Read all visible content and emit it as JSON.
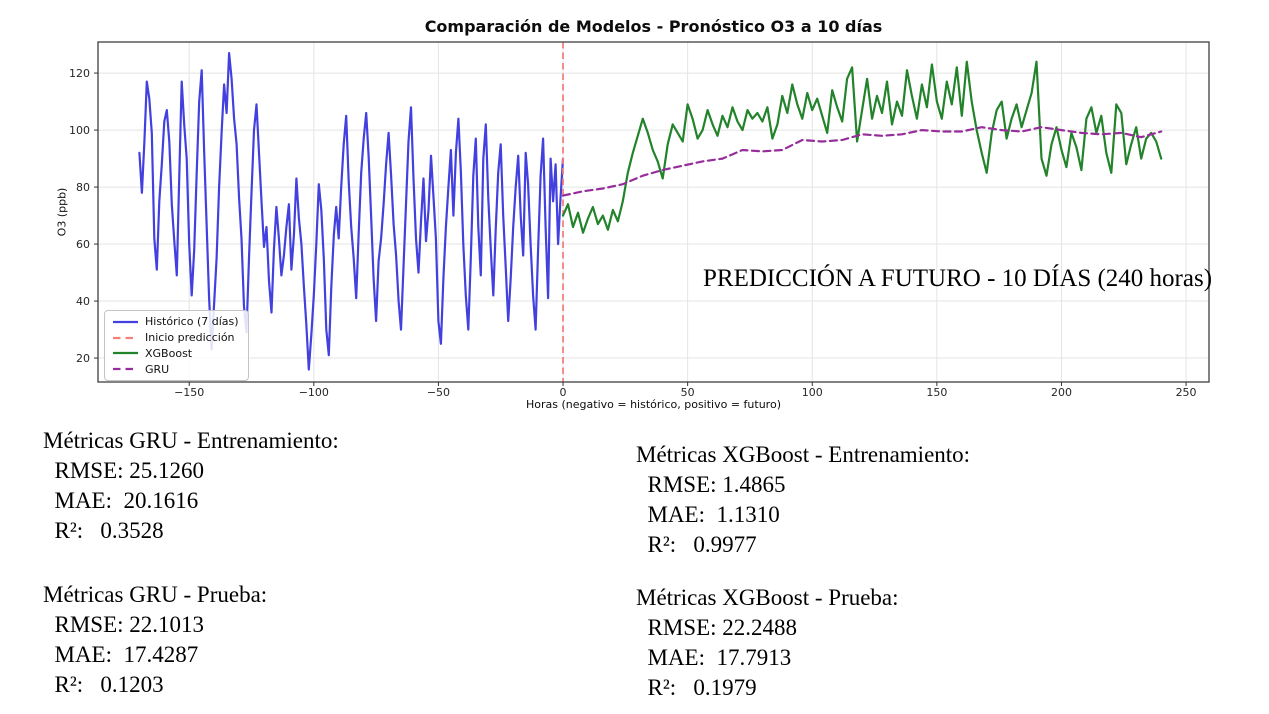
{
  "chart_data": {
    "type": "line",
    "title": "Comparación de Modelos - Pronóstico O3 a 10 días",
    "xlabel": "Horas (negativo = histórico, positivo = futuro)",
    "ylabel": "O3 (ppb)",
    "annotation": "PREDICCIÓN A FUTURO - 10 DÍAS (240 horas)",
    "xlim": [
      -186.6,
      259.2
    ],
    "ylim": [
      11.6,
      130.9
    ],
    "xticks": [
      -150,
      -100,
      -50,
      0,
      50,
      100,
      150,
      200,
      250
    ],
    "yticks": [
      20,
      40,
      60,
      80,
      100,
      120
    ],
    "grid": true,
    "legend_position": "lower left",
    "vline": {
      "x": 0,
      "color": "#f4827b",
      "style": "dashed",
      "label": "Inicio predicción"
    },
    "series": [
      {
        "name": "Histórico (7 días)",
        "color": "#4340e0",
        "style": "solid",
        "width": 2.2,
        "x_start": -170,
        "x_step": 1,
        "y": [
          92,
          78,
          96,
          117,
          111,
          99,
          62,
          51,
          75,
          88,
          103,
          107,
          96,
          74,
          61,
          49,
          83,
          117,
          102,
          90,
          60,
          42,
          58,
          85,
          110,
          121,
          92,
          66,
          41,
          23,
          39,
          55,
          80,
          99,
          116,
          106,
          127,
          118,
          104,
          95,
          76,
          62,
          38,
          29,
          55,
          78,
          100,
          109,
          92,
          75,
          59,
          66,
          47,
          36,
          58,
          73,
          62,
          49,
          56,
          66,
          74,
          51,
          63,
          83,
          69,
          60,
          45,
          32,
          16,
          28,
          42,
          60,
          81,
          72,
          55,
          30,
          21,
          45,
          63,
          73,
          62,
          80,
          95,
          105,
          82,
          66,
          55,
          41,
          64,
          85,
          97,
          106,
          91,
          70,
          48,
          33,
          54,
          62,
          74,
          88,
          99,
          84,
          67,
          56,
          40,
          30,
          52,
          74,
          96,
          108,
          83,
          62,
          50,
          68,
          83,
          61,
          72,
          91,
          77,
          62,
          33,
          25,
          48,
          66,
          80,
          93,
          70,
          92,
          104,
          85,
          60,
          42,
          30,
          55,
          84,
          97,
          66,
          49,
          90,
          102,
          76,
          58,
          42,
          65,
          85,
          95,
          70,
          52,
          33,
          48,
          66,
          80,
          91,
          70,
          56,
          92,
          81,
          60,
          42,
          30,
          58,
          84,
          97,
          66,
          41,
          90,
          75,
          88,
          60,
          76,
          90
        ]
      },
      {
        "name": "XGBoost",
        "color": "#22832a",
        "style": "solid",
        "width": 2.2,
        "x_start": 0,
        "x_step": 2,
        "y": [
          70,
          74,
          66,
          71,
          64,
          69,
          73,
          67,
          70,
          65,
          72,
          68,
          75,
          85,
          92,
          98,
          104,
          99,
          93,
          89,
          83,
          95,
          102,
          99,
          96,
          109,
          104,
          97,
          100,
          107,
          102,
          98,
          105,
          101,
          108,
          103,
          100,
          107,
          104,
          106,
          103,
          108,
          97,
          102,
          112,
          106,
          116,
          109,
          104,
          113,
          107,
          111,
          105,
          99,
          114,
          108,
          103,
          118,
          122,
          96,
          107,
          118,
          104,
          112,
          106,
          117,
          102,
          110,
          105,
          121,
          112,
          104,
          116,
          108,
          123,
          110,
          104,
          117,
          109,
          122,
          105,
          124,
          110,
          100,
          92,
          85,
          99,
          107,
          110,
          97,
          104,
          109,
          101,
          107,
          113,
          124,
          90,
          84,
          95,
          101,
          93,
          87,
          99,
          94,
          86,
          104,
          108,
          99,
          105,
          92,
          85,
          109,
          106,
          88,
          95,
          101,
          90,
          97,
          99,
          96,
          90
        ]
      },
      {
        "name": "GRU",
        "color": "#962d9b",
        "style": "dashed",
        "width": 2.2,
        "x_start": 0,
        "x_step": 8,
        "y": [
          77,
          78.5,
          79.5,
          81,
          84,
          86,
          87.5,
          89,
          90,
          93,
          92.5,
          93,
          96.5,
          96,
          96.5,
          98.5,
          98,
          98.5,
          100,
          99.5,
          99.5,
          101,
          100,
          99.5,
          101,
          100,
          99,
          98.5,
          99,
          97.5,
          99.5
        ]
      }
    ],
    "legend": [
      {
        "label": "Histórico (7 días)",
        "color": "#4340e0",
        "style": "solid"
      },
      {
        "label": "Inicio predicción",
        "color": "#f4827b",
        "style": "dashed"
      },
      {
        "label": "XGBoost",
        "color": "#22832a",
        "style": "solid"
      },
      {
        "label": "GRU",
        "color": "#962d9b",
        "style": "dashed"
      }
    ]
  },
  "metrics": {
    "gru_train": {
      "title": "Métricas GRU - Entrenamiento:",
      "rmse": "  RMSE: 25.1260",
      "mae": "  MAE:  20.1616",
      "r2": "  R²:   0.3528"
    },
    "gru_test": {
      "title": "Métricas GRU - Prueba:",
      "rmse": "  RMSE: 22.1013",
      "mae": "  MAE:  17.4287",
      "r2": "  R²:   0.1203"
    },
    "xgb_train": {
      "title": "Métricas XGBoost - Entrenamiento:",
      "rmse": "  RMSE: 1.4865",
      "mae": "  MAE:  1.1310",
      "r2": "  R²:   0.9977"
    },
    "xgb_test": {
      "title": "Métricas XGBoost - Prueba:",
      "rmse": "  RMSE: 22.2488",
      "mae": "  MAE:  17.7913",
      "r2": "  R²:   0.1979"
    }
  }
}
